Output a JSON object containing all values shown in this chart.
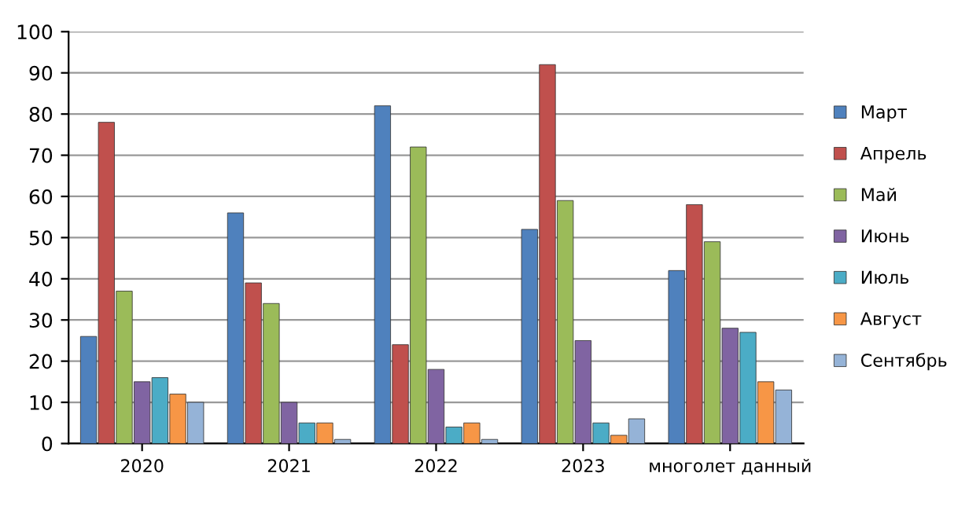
{
  "chart_data": {
    "type": "bar",
    "categories": [
      "2020",
      "2021",
      "2022",
      "2023",
      "многолет данный"
    ],
    "series": [
      {
        "name": "Март",
        "color": "#4f81bd",
        "values": [
          26,
          56,
          82,
          52,
          42
        ]
      },
      {
        "name": "Апрель",
        "color": "#c0504d",
        "values": [
          78,
          39,
          24,
          92,
          58
        ]
      },
      {
        "name": "Май",
        "color": "#9bbb59",
        "values": [
          37,
          34,
          72,
          59,
          49
        ]
      },
      {
        "name": "Июнь",
        "color": "#8064a2",
        "values": [
          15,
          10,
          18,
          25,
          28
        ]
      },
      {
        "name": "Июль",
        "color": "#4bacc6",
        "values": [
          16,
          5,
          4,
          5,
          27
        ]
      },
      {
        "name": "Август",
        "color": "#f79646",
        "values": [
          12,
          5,
          5,
          2,
          15
        ]
      },
      {
        "name": "Сентябрь",
        "color": "#95b3d7",
        "values": [
          10,
          1,
          1,
          6,
          13
        ]
      }
    ],
    "ylim": [
      0,
      100
    ],
    "yticks": [
      0,
      10,
      20,
      30,
      40,
      50,
      60,
      70,
      80,
      90,
      100
    ],
    "grid": "y",
    "legend": "right"
  }
}
